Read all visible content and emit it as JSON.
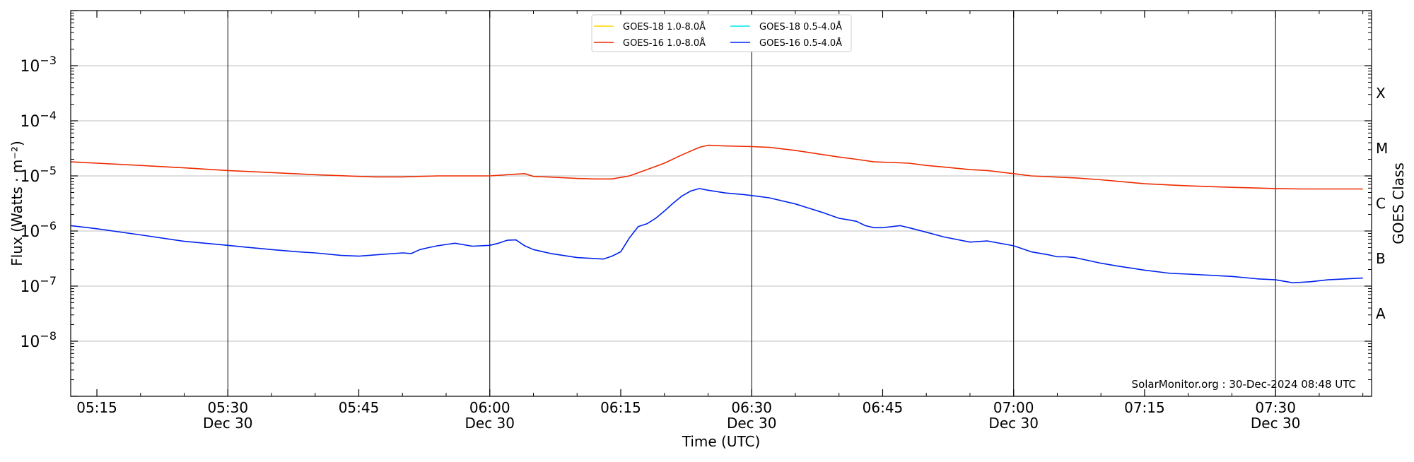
{
  "chart_data": {
    "type": "line",
    "xlabel": "Time (UTC)",
    "ylabel": "Flux (Watts · m⁻²)",
    "ylabel2": "GOES Class",
    "yscale": "log",
    "ylim": [
      1e-09,
      0.01
    ],
    "xlim": [
      "05:12",
      "07:41"
    ],
    "x_ticks": [
      {
        "time": "05:15",
        "date": ""
      },
      {
        "time": "05:30",
        "date": "Dec 30"
      },
      {
        "time": "05:45",
        "date": ""
      },
      {
        "time": "06:00",
        "date": "Dec 30"
      },
      {
        "time": "06:15",
        "date": ""
      },
      {
        "time": "06:30",
        "date": "Dec 30"
      },
      {
        "time": "06:45",
        "date": ""
      },
      {
        "time": "07:00",
        "date": "Dec 30"
      },
      {
        "time": "07:15",
        "date": ""
      },
      {
        "time": "07:30",
        "date": "Dec 30"
      }
    ],
    "y_ticks": [
      {
        "exp": -8,
        "label": "10",
        "sup": "−8"
      },
      {
        "exp": -7,
        "label": "10",
        "sup": "−7"
      },
      {
        "exp": -6,
        "label": "10",
        "sup": "−6"
      },
      {
        "exp": -5,
        "label": "10",
        "sup": "−5"
      },
      {
        "exp": -4,
        "label": "10",
        "sup": "−4"
      },
      {
        "exp": -3,
        "label": "10",
        "sup": "−3"
      }
    ],
    "goes_classes": [
      "A",
      "B",
      "C",
      "M",
      "X"
    ],
    "grid": true,
    "legend_position": "top-center",
    "series": [
      {
        "name": "GOES-18 1.0-8.0Å",
        "color": "#ffd700",
        "values": []
      },
      {
        "name": "GOES-18 0.5-4.0Å",
        "color": "#00e5ee",
        "values": []
      },
      {
        "name": "GOES-16 1.0-8.0Å",
        "color": "#ee2c00",
        "x": [
          "05:12",
          "05:15",
          "05:20",
          "05:25",
          "05:30",
          "05:35",
          "05:40",
          "05:45",
          "05:47",
          "05:50",
          "05:52",
          "05:54",
          "05:56",
          "05:58",
          "06:00",
          "06:02",
          "06:04",
          "06:05",
          "06:07",
          "06:10",
          "06:12",
          "06:14",
          "06:16",
          "06:18",
          "06:20",
          "06:22",
          "06:24",
          "06:25",
          "06:27",
          "06:30",
          "06:32",
          "06:35",
          "06:40",
          "06:42",
          "06:44",
          "06:46",
          "06:48",
          "06:50",
          "06:52",
          "06:55",
          "06:57",
          "07:00",
          "07:02",
          "07:05",
          "07:07",
          "07:10",
          "07:15",
          "07:20",
          "07:25",
          "07:30",
          "07:33",
          "07:36",
          "07:38",
          "07:40"
        ],
        "values": [
          1.8e-05,
          1.7e-05,
          1.55e-05,
          1.4e-05,
          1.25e-05,
          1.15e-05,
          1.05e-05,
          9.8e-06,
          9.6e-06,
          9.6e-06,
          9.8e-06,
          1e-05,
          1e-05,
          1e-05,
          1e-05,
          1.05e-05,
          1.1e-05,
          9.8e-06,
          9.5e-06,
          9e-06,
          8.8e-06,
          8.8e-06,
          1e-05,
          1.3e-05,
          1.7e-05,
          2.4e-05,
          3.3e-05,
          3.6e-05,
          3.5e-05,
          3.4e-05,
          3.3e-05,
          2.9e-05,
          2.2e-05,
          2e-05,
          1.8e-05,
          1.75e-05,
          1.7e-05,
          1.55e-05,
          1.45e-05,
          1.3e-05,
          1.25e-05,
          1.1e-05,
          1e-05,
          9.5e-06,
          9.2e-06,
          8.5e-06,
          7.2e-06,
          6.6e-06,
          6.2e-06,
          5.9e-06,
          5.8e-06,
          5.8e-06,
          5.8e-06,
          5.8e-06
        ]
      },
      {
        "name": "GOES-16 0.5-4.0Å",
        "color": "#0022ee",
        "x": [
          "05:12",
          "05:15",
          "05:20",
          "05:25",
          "05:30",
          "05:32",
          "05:35",
          "05:38",
          "05:40",
          "05:43",
          "05:45",
          "05:47",
          "05:50",
          "05:51",
          "05:52",
          "05:53",
          "05:54",
          "05:56",
          "05:58",
          "06:00",
          "06:01",
          "06:02",
          "06:03",
          "06:04",
          "06:05",
          "06:07",
          "06:10",
          "06:13",
          "06:14",
          "06:15",
          "06:16",
          "06:17",
          "06:18",
          "06:19",
          "06:20",
          "06:21",
          "06:22",
          "06:23",
          "06:24",
          "06:25",
          "06:27",
          "06:29",
          "06:30",
          "06:32",
          "06:35",
          "06:38",
          "06:40",
          "06:41",
          "06:42",
          "06:43",
          "06:44",
          "06:45",
          "06:47",
          "06:48",
          "06:50",
          "06:52",
          "06:55",
          "06:57",
          "07:00",
          "07:02",
          "07:04",
          "07:05",
          "07:06",
          "07:07",
          "07:10",
          "07:12",
          "07:15",
          "07:18",
          "07:20",
          "07:25",
          "07:28",
          "07:30",
          "07:32",
          "07:34",
          "07:36",
          "07:38",
          "07:40"
        ],
        "values": [
          1.25e-06,
          1.1e-06,
          8.5e-07,
          6.5e-07,
          5.5e-07,
          5.1e-07,
          4.6e-07,
          4.2e-07,
          4e-07,
          3.6e-07,
          3.5e-07,
          3.7e-07,
          4e-07,
          3.9e-07,
          4.6e-07,
          5e-07,
          5.4e-07,
          6e-07,
          5.3e-07,
          5.5e-07,
          6e-07,
          6.8e-07,
          6.9e-07,
          5.4e-07,
          4.6e-07,
          3.9e-07,
          3.3e-07,
          3.1e-07,
          3.5e-07,
          4.2e-07,
          7.5e-07,
          1.2e-06,
          1.35e-06,
          1.7e-06,
          2.3e-06,
          3.2e-06,
          4.3e-06,
          5.3e-06,
          5.9e-06,
          5.5e-06,
          4.9e-06,
          4.6e-06,
          4.4e-06,
          4e-06,
          3.1e-06,
          2.2e-06,
          1.7e-06,
          1.6e-06,
          1.5e-06,
          1.25e-06,
          1.15e-06,
          1.15e-06,
          1.25e-06,
          1.15e-06,
          9.5e-07,
          7.8e-07,
          6.3e-07,
          6.6e-07,
          5.4e-07,
          4.2e-07,
          3.7e-07,
          3.4e-07,
          3.4e-07,
          3.3e-07,
          2.6e-07,
          2.3e-07,
          1.95e-07,
          1.7e-07,
          1.65e-07,
          1.5e-07,
          1.35e-07,
          1.3e-07,
          1.15e-07,
          1.2e-07,
          1.3e-07,
          1.35e-07,
          1.4e-07
        ]
      }
    ],
    "annotation": "SolarMonitor.org : 30-Dec-2024 08:48 UTC"
  }
}
